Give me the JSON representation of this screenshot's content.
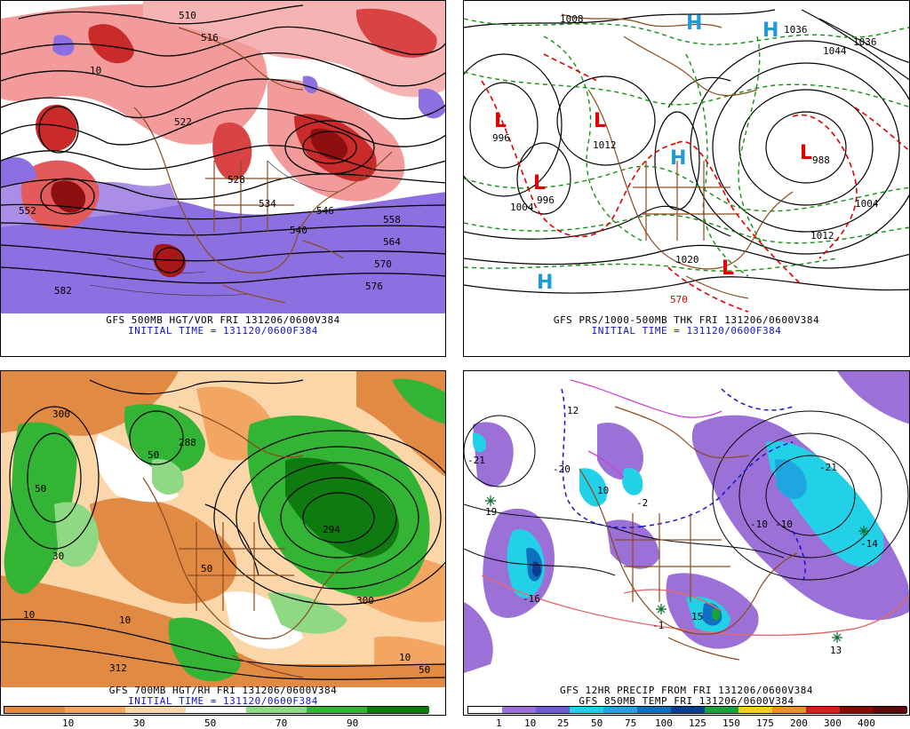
{
  "panels": [
    {
      "id": "tl",
      "caption_line1": "GFS 500MB HGT/VOR FRI 131206/0600V384",
      "caption_line2": "INITIAL TIME = 131120/0600F384",
      "labels": [
        "510",
        "516",
        "522",
        "528",
        "534",
        "540",
        "546",
        "552",
        "558",
        "564",
        "570",
        "576",
        "582",
        "10"
      ]
    },
    {
      "id": "tr",
      "caption_line1": "GFS PRS/1000-500MB THK FRI 131206/0600V384",
      "caption_line2": "INITIAL TIME = 131120/0600F384",
      "pressure_centers": [
        {
          "type": "L",
          "value": "996",
          "color": "#e00000"
        },
        {
          "type": "L",
          "value": "1012",
          "color": "#e00000"
        },
        {
          "type": "L",
          "value": "988",
          "color": "#e00000"
        },
        {
          "type": "L",
          "value": "996",
          "color": "#e00000"
        },
        {
          "type": "L",
          "value": "",
          "color": "#e00000"
        },
        {
          "type": "H",
          "value": "1020",
          "color": "#1e9ad6"
        },
        {
          "type": "H",
          "value": "1036",
          "color": "#1e9ad6"
        },
        {
          "type": "H",
          "value": "",
          "color": "#1e9ad6"
        },
        {
          "type": "H",
          "value": "",
          "color": "#1e9ad6"
        }
      ],
      "labels": [
        "1008",
        "1044",
        "1036",
        "1004",
        "1012",
        "1004",
        "570"
      ]
    },
    {
      "id": "bl",
      "caption_line1": "GFS 700MB HGT/RH FRI 131206/0600V384",
      "caption_line2": "INITIAL TIME = 131120/0600F384",
      "labels": [
        "300",
        "288",
        "50",
        "50",
        "30",
        "294",
        "10",
        "10",
        "312",
        "50",
        "300",
        "10",
        "50"
      ]
    },
    {
      "id": "br",
      "caption_line1": "GFS 12HR PRECIP FROM FRI 131206/0600V384",
      "caption_line2": "GFS 850MB TEMP FRI 131206/0600V384",
      "labels": [
        "-21",
        "19",
        "-20",
        "12",
        "10",
        "-16",
        "-10",
        "-21",
        "-14",
        "-10",
        "13",
        "-1",
        "15",
        "-2"
      ]
    }
  ],
  "rh_colorbar": {
    "ticks": [
      "10",
      "30",
      "50",
      "70",
      "90"
    ],
    "colors": [
      "#e08a44",
      "#f2a661",
      "#fbd6a9",
      "#ffffff",
      "#8fd884",
      "#34b434",
      "#0f7a0f"
    ]
  },
  "precip_colorbar": {
    "ticks": [
      "1",
      "10",
      "25",
      "50",
      "75",
      "100",
      "125",
      "150",
      "175",
      "200",
      "300",
      "400"
    ],
    "colors": [
      "#ffffff",
      "#9b71d8",
      "#6f5ad6",
      "#22d0e8",
      "#1fa6e0",
      "#1070c0",
      "#0a3f90",
      "#16a23c",
      "#f0d020",
      "#f09020",
      "#d02020",
      "#8a0a0a",
      "#5a0a0a"
    ]
  }
}
